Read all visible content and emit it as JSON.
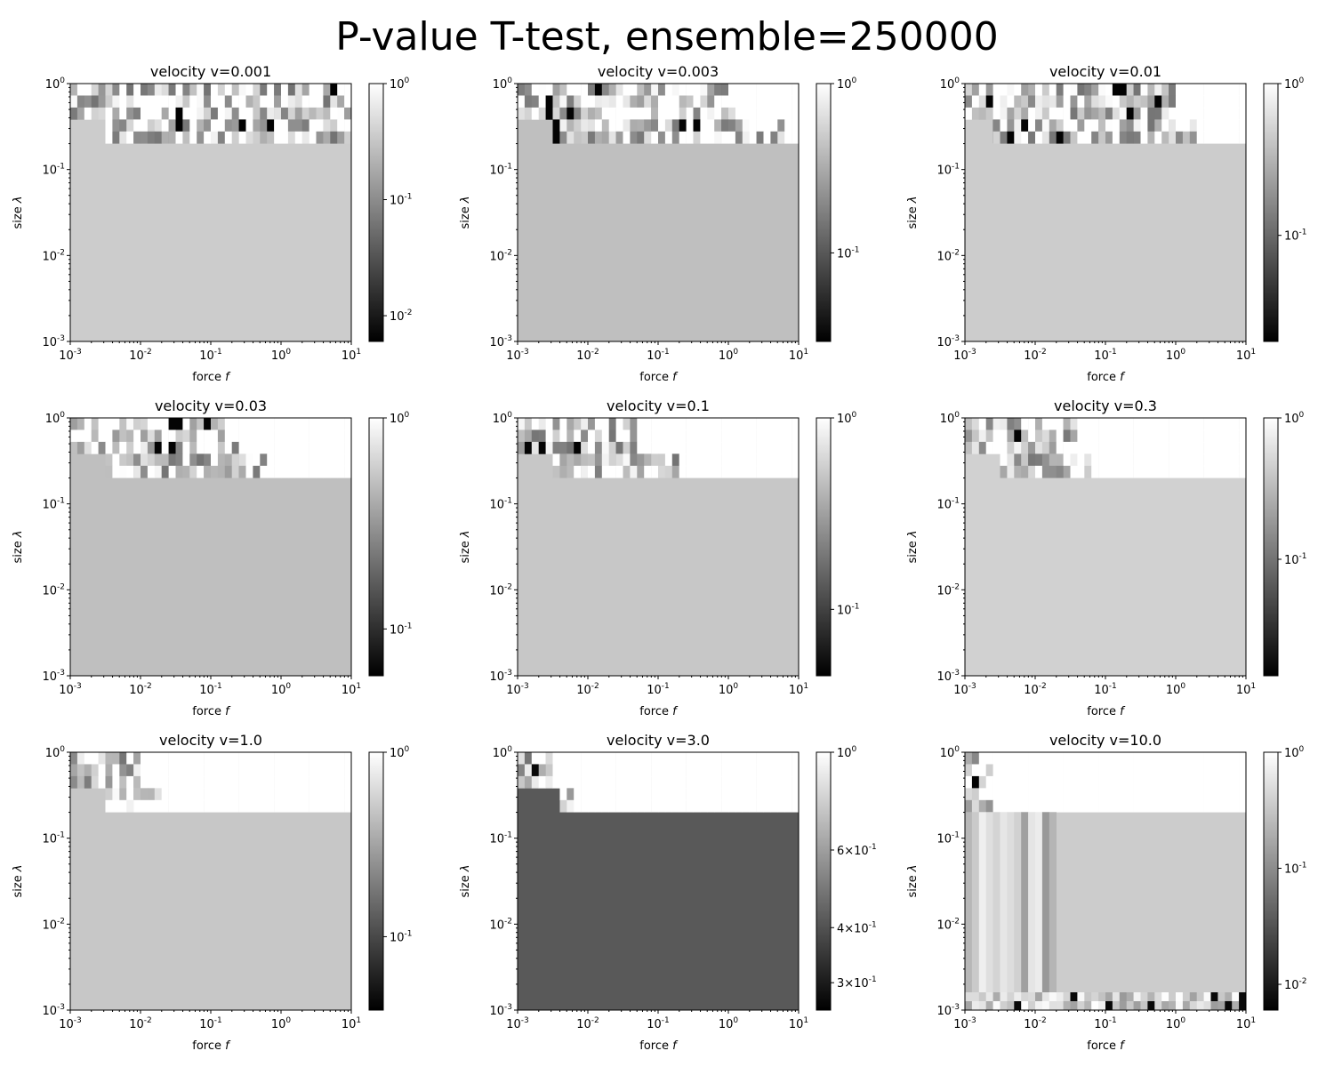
{
  "figure": {
    "suptitle": "P-value T-test, ensemble=250000",
    "xlabel": "force",
    "xlabel_var": "f",
    "ylabel": "size",
    "ylabel_var": "λ"
  },
  "chart_data": [
    {
      "type": "heatmap",
      "title": "velocity v=0.001",
      "base_level": 0.8,
      "xscale": "log",
      "yscale": "log",
      "xlim": [
        0.001,
        10
      ],
      "ylim": [
        0.001,
        1
      ],
      "x_ticks": [
        "10^-3",
        "10^-2",
        "10^-1",
        "10^0",
        "10^1"
      ],
      "y_ticks": [
        "10^-3",
        "10^-2",
        "10^-1",
        "10^0"
      ],
      "colorbar": {
        "scale": "log",
        "min": 0.006,
        "max": 1,
        "ticks": [
          {
            "v": 1,
            "label": "10^0"
          },
          {
            "v": 0.1,
            "label": "10^-1"
          },
          {
            "v": 0.01,
            "label": "10^-2"
          }
        ]
      },
      "active_rows": 4,
      "step_col": 5,
      "max_col_top": 40,
      "max_col_low": 40
    },
    {
      "type": "heatmap",
      "title": "velocity v=0.003",
      "base_level": 0.75,
      "xscale": "log",
      "yscale": "log",
      "xlim": [
        0.001,
        10
      ],
      "ylim": [
        0.001,
        1
      ],
      "x_ticks": [
        "10^-3",
        "10^-2",
        "10^-1",
        "10^0",
        "10^1"
      ],
      "y_ticks": [
        "10^-3",
        "10^-2",
        "10^-1",
        "10^0"
      ],
      "colorbar": {
        "scale": "log",
        "min": 0.03,
        "max": 1,
        "ticks": [
          {
            "v": 1,
            "label": "10^0"
          },
          {
            "v": 0.1,
            "label": "10^-1"
          }
        ]
      },
      "active_rows": 4,
      "step_col": 5,
      "max_col_top": 31,
      "max_col_low": 38
    },
    {
      "type": "heatmap",
      "title": "velocity v=0.01",
      "base_level": 0.8,
      "xscale": "log",
      "yscale": "log",
      "xlim": [
        0.001,
        10
      ],
      "ylim": [
        0.001,
        1
      ],
      "x_ticks": [
        "10^-3",
        "10^-2",
        "10^-1",
        "10^0",
        "10^1"
      ],
      "y_ticks": [
        "10^-3",
        "10^-2",
        "10^-1",
        "10^0"
      ],
      "colorbar": {
        "scale": "log",
        "min": 0.02,
        "max": 1,
        "ticks": [
          {
            "v": 1,
            "label": "10^0"
          },
          {
            "v": 0.1,
            "label": "10^-1"
          }
        ]
      },
      "active_rows": 4,
      "step_col": 4,
      "max_col_top": 30,
      "max_col_low": 33
    },
    {
      "type": "heatmap",
      "title": "velocity v=0.03",
      "base_level": 0.75,
      "xscale": "log",
      "yscale": "log",
      "xlim": [
        0.001,
        10
      ],
      "ylim": [
        0.001,
        1
      ],
      "x_ticks": [
        "10^-3",
        "10^-2",
        "10^-1",
        "10^0",
        "10^1"
      ],
      "y_ticks": [
        "10^-3",
        "10^-2",
        "10^-1",
        "10^0"
      ],
      "colorbar": {
        "scale": "log",
        "min": 0.06,
        "max": 1,
        "ticks": [
          {
            "v": 1,
            "label": "10^0"
          },
          {
            "v": 0.1,
            "label": "10^-1"
          }
        ]
      },
      "active_rows": 4,
      "step_col": 5,
      "max_col_top": 24,
      "max_col_low": 28
    },
    {
      "type": "heatmap",
      "title": "velocity v=0.1",
      "base_level": 0.78,
      "xscale": "log",
      "yscale": "log",
      "xlim": [
        0.001,
        10
      ],
      "ylim": [
        0.001,
        1
      ],
      "x_ticks": [
        "10^-3",
        "10^-2",
        "10^-1",
        "10^0",
        "10^1"
      ],
      "y_ticks": [
        "10^-3",
        "10^-2",
        "10^-1",
        "10^0"
      ],
      "colorbar": {
        "scale": "log",
        "min": 0.045,
        "max": 1,
        "ticks": [
          {
            "v": 1,
            "label": "10^0"
          },
          {
            "v": 0.1,
            "label": "10^-1"
          }
        ]
      },
      "active_rows": 4,
      "step_col": 5,
      "max_col_top": 17,
      "max_col_low": 23
    },
    {
      "type": "heatmap",
      "title": "velocity v=0.3",
      "base_level": 0.82,
      "xscale": "log",
      "yscale": "log",
      "xlim": [
        0.001,
        10
      ],
      "ylim": [
        0.001,
        1
      ],
      "x_ticks": [
        "10^-3",
        "10^-2",
        "10^-1",
        "10^0",
        "10^1"
      ],
      "y_ticks": [
        "10^-3",
        "10^-2",
        "10^-1",
        "10^0"
      ],
      "colorbar": {
        "scale": "log",
        "min": 0.015,
        "max": 1,
        "ticks": [
          {
            "v": 1,
            "label": "10^0"
          },
          {
            "v": 0.1,
            "label": "10^-1"
          }
        ]
      },
      "active_rows": 4,
      "step_col": 5,
      "max_col_top": 16,
      "max_col_low": 18
    },
    {
      "type": "heatmap",
      "title": "velocity v=1.0",
      "base_level": 0.78,
      "xscale": "log",
      "yscale": "log",
      "xlim": [
        0.001,
        10
      ],
      "ylim": [
        0.001,
        1
      ],
      "x_ticks": [
        "10^-3",
        "10^-2",
        "10^-1",
        "10^0",
        "10^1"
      ],
      "y_ticks": [
        "10^-3",
        "10^-2",
        "10^-1",
        "10^0"
      ],
      "colorbar": {
        "scale": "log",
        "min": 0.04,
        "max": 1,
        "ticks": [
          {
            "v": 1,
            "label": "10^0"
          },
          {
            "v": 0.1,
            "label": "10^-1"
          }
        ]
      },
      "active_rows": 4,
      "step_col": 5,
      "max_col_top": 10,
      "max_col_low": 13
    },
    {
      "type": "heatmap",
      "title": "velocity v=3.0",
      "base_level": 0.35,
      "xscale": "log",
      "yscale": "log",
      "xlim": [
        0.001,
        10
      ],
      "ylim": [
        0.001,
        1
      ],
      "x_ticks": [
        "10^-3",
        "10^-2",
        "10^-1",
        "10^0",
        "10^1"
      ],
      "y_ticks": [
        "10^-3",
        "10^-2",
        "10^-1",
        "10^0"
      ],
      "colorbar": {
        "scale": "log",
        "min": 0.26,
        "max": 1,
        "ticks": [
          {
            "v": 1,
            "label": "10^0"
          },
          {
            "v": 0.6,
            "label": "6×10^-1"
          },
          {
            "v": 0.4,
            "label": "4×10^-1"
          },
          {
            "v": 0.3,
            "label": "3×10^-1"
          }
        ]
      },
      "active_rows": 4,
      "step_col": 6,
      "max_col_top": 5,
      "max_col_low": 8
    },
    {
      "type": "heatmap",
      "title": "velocity v=10.0",
      "base_level": 0.8,
      "xscale": "log",
      "yscale": "log",
      "xlim": [
        0.001,
        10
      ],
      "ylim": [
        0.001,
        1
      ],
      "x_ticks": [
        "10^-3",
        "10^-2",
        "10^-1",
        "10^0",
        "10^1"
      ],
      "y_ticks": [
        "10^-3",
        "10^-2",
        "10^-1",
        "10^0"
      ],
      "colorbar": {
        "scale": "log",
        "min": 0.006,
        "max": 1,
        "ticks": [
          {
            "v": 1,
            "label": "10^0"
          },
          {
            "v": 0.1,
            "label": "10^-1"
          },
          {
            "v": 0.01,
            "label": "10^-2"
          }
        ]
      },
      "active_rows": 4,
      "step_col": 0,
      "max_col_top": 4,
      "max_col_low": 4,
      "stripe_cols": 13,
      "bottom_rows": 2
    }
  ]
}
